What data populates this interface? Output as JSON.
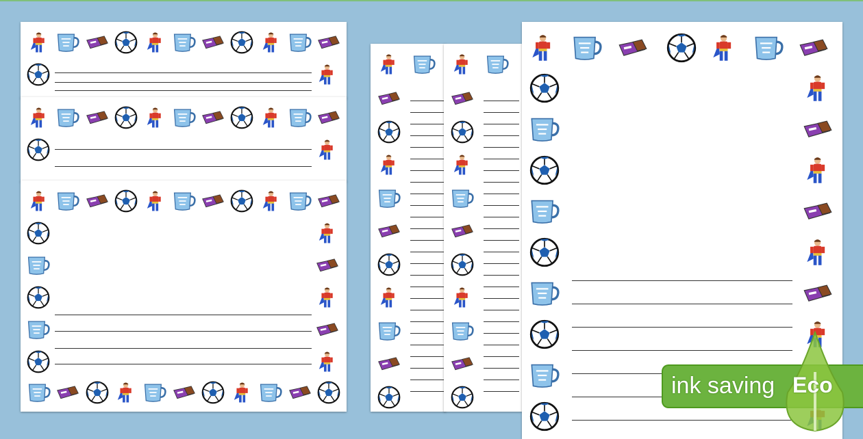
{
  "icon_cycle": [
    "superhero-icon",
    "mug-icon",
    "chocolate-bar-icon",
    "football-icon"
  ],
  "colors": {
    "background": "#98c0da",
    "badge": "#6cb33f",
    "mug": "#8ec3ea",
    "ball": "#1f5fb0",
    "chocolate": "#8a3fb0"
  },
  "badge": {
    "label": "ink saving",
    "eco": "Eco"
  }
}
